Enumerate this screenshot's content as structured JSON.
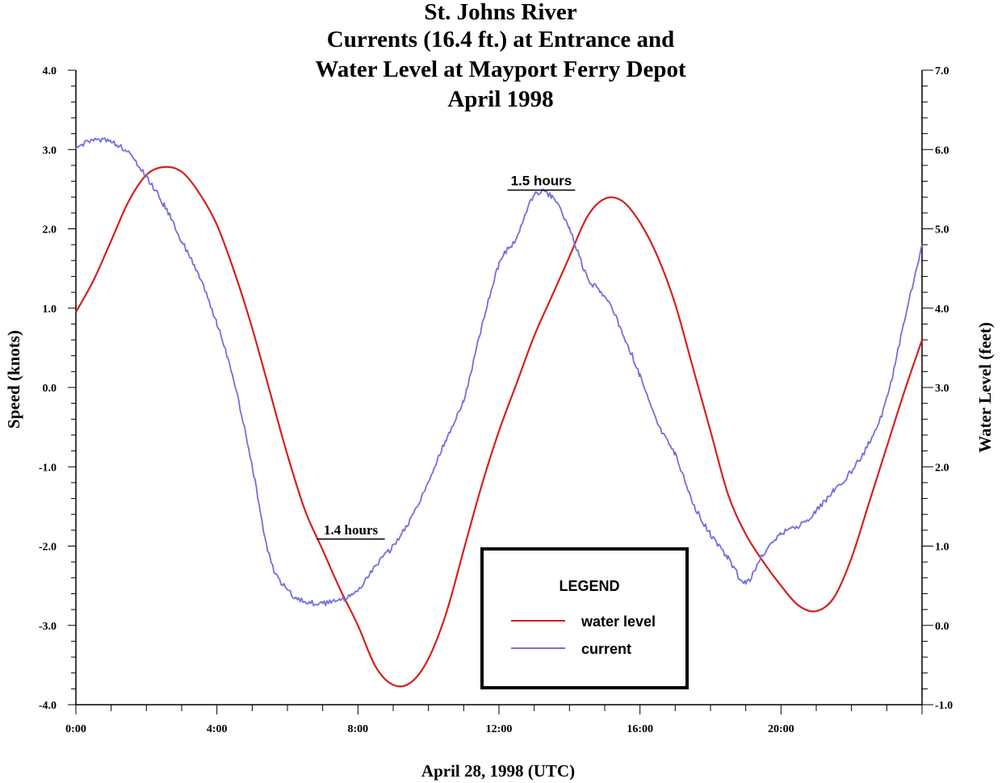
{
  "chart_data": {
    "type": "line",
    "title_lines": [
      "St. Johns River",
      "Currents (16.4 ft.) at Entrance and",
      "Water Level at Mayport Ferry Depot",
      "April 1998"
    ],
    "xlabel": "April 28, 1998 (UTC)",
    "ylabel_left": "Speed (knots)",
    "ylabel_right": "Water Level (feet)",
    "xlim": [
      0,
      24
    ],
    "ylim_left": [
      -4.0,
      4.0
    ],
    "ylim_right": [
      -1.0,
      7.0
    ],
    "x_ticks": [
      0,
      4,
      8,
      12,
      16,
      20
    ],
    "x_tick_labels": [
      "0:00",
      "4:00",
      "8:00",
      "12:00",
      "16:00",
      "20:00"
    ],
    "y_left_ticks": [
      4.0,
      3.0,
      2.0,
      1.0,
      0.0,
      -1.0,
      -2.0,
      -3.0,
      -4.0
    ],
    "y_left_tick_labels": [
      "4.0",
      "3.0",
      "2.0",
      "1.0",
      "0.0",
      "-1.0",
      "-2.0",
      "-3.0",
      "-4.0"
    ],
    "y_right_ticks": [
      7.0,
      6.0,
      5.0,
      4.0,
      3.0,
      2.0,
      1.0,
      0.0,
      -1.0
    ],
    "y_right_tick_labels": [
      "7.0",
      "6.0",
      "5.0",
      "4.0",
      "3.0",
      "2.0",
      "1.0",
      "0.0",
      "-1.0"
    ],
    "series": [
      {
        "name": "water level",
        "axis": "right",
        "color": "#d42020",
        "x": [
          0,
          0.5,
          1,
          1.5,
          2,
          2.5,
          3,
          3.5,
          4,
          4.5,
          5,
          5.5,
          6,
          6.5,
          7,
          7.5,
          8,
          8.5,
          9,
          9.5,
          10,
          10.5,
          11,
          11.5,
          12,
          12.5,
          13,
          13.5,
          14,
          14.5,
          15,
          15.5,
          16,
          16.5,
          17,
          17.5,
          18,
          18.5,
          19,
          19.5,
          20,
          20.5,
          21,
          21.5,
          22,
          22.5,
          23,
          23.5,
          24
        ],
        "values": [
          3.95,
          4.35,
          4.85,
          5.35,
          5.68,
          5.78,
          5.72,
          5.45,
          5.05,
          4.45,
          3.75,
          2.95,
          2.15,
          1.45,
          0.95,
          0.45,
          0.0,
          -0.52,
          -0.75,
          -0.72,
          -0.42,
          0.15,
          0.95,
          1.75,
          2.45,
          3.05,
          3.65,
          4.15,
          4.65,
          5.15,
          5.38,
          5.35,
          5.08,
          4.65,
          4.05,
          3.25,
          2.45,
          1.65,
          1.15,
          0.8,
          0.5,
          0.25,
          0.18,
          0.35,
          0.85,
          1.55,
          2.25,
          2.95,
          3.6
        ]
      },
      {
        "name": "current",
        "axis": "left",
        "color": "#7070dd",
        "x": [
          0,
          0.5,
          1,
          1.5,
          2,
          2.5,
          3,
          3.5,
          4,
          4.5,
          5,
          5.5,
          6,
          6.5,
          7,
          7.5,
          8,
          8.5,
          9,
          9.5,
          10,
          10.5,
          11,
          11.5,
          12,
          12.5,
          13,
          13.5,
          14,
          14.5,
          15,
          15.5,
          16,
          16.5,
          17,
          17.5,
          18,
          18.5,
          19,
          19.5,
          20,
          20.5,
          21,
          21.5,
          22,
          22.5,
          23,
          23.5,
          24
        ],
        "values": [
          3.0,
          3.12,
          3.1,
          2.95,
          2.65,
          2.3,
          1.85,
          1.4,
          0.8,
          0.05,
          -1.0,
          -2.15,
          -2.55,
          -2.7,
          -2.72,
          -2.68,
          -2.55,
          -2.25,
          -2.0,
          -1.65,
          -1.2,
          -0.65,
          -0.15,
          0.75,
          1.55,
          1.9,
          2.42,
          2.4,
          2.0,
          1.4,
          1.15,
          0.7,
          0.15,
          -0.45,
          -0.85,
          -1.45,
          -1.85,
          -2.15,
          -2.45,
          -2.1,
          -1.85,
          -1.75,
          -1.55,
          -1.3,
          -1.05,
          -0.7,
          -0.15,
          0.85,
          1.8
        ]
      }
    ],
    "annotations": [
      {
        "text": "1.4 hours",
        "x": 7.8,
        "y_left": -1.85
      },
      {
        "text": "1.5 hours",
        "x": 13.2,
        "y_left": 2.55
      }
    ],
    "legend": {
      "title": "LEGEND",
      "entries": [
        "water level",
        "current"
      ],
      "placement": "bottom-center"
    }
  }
}
